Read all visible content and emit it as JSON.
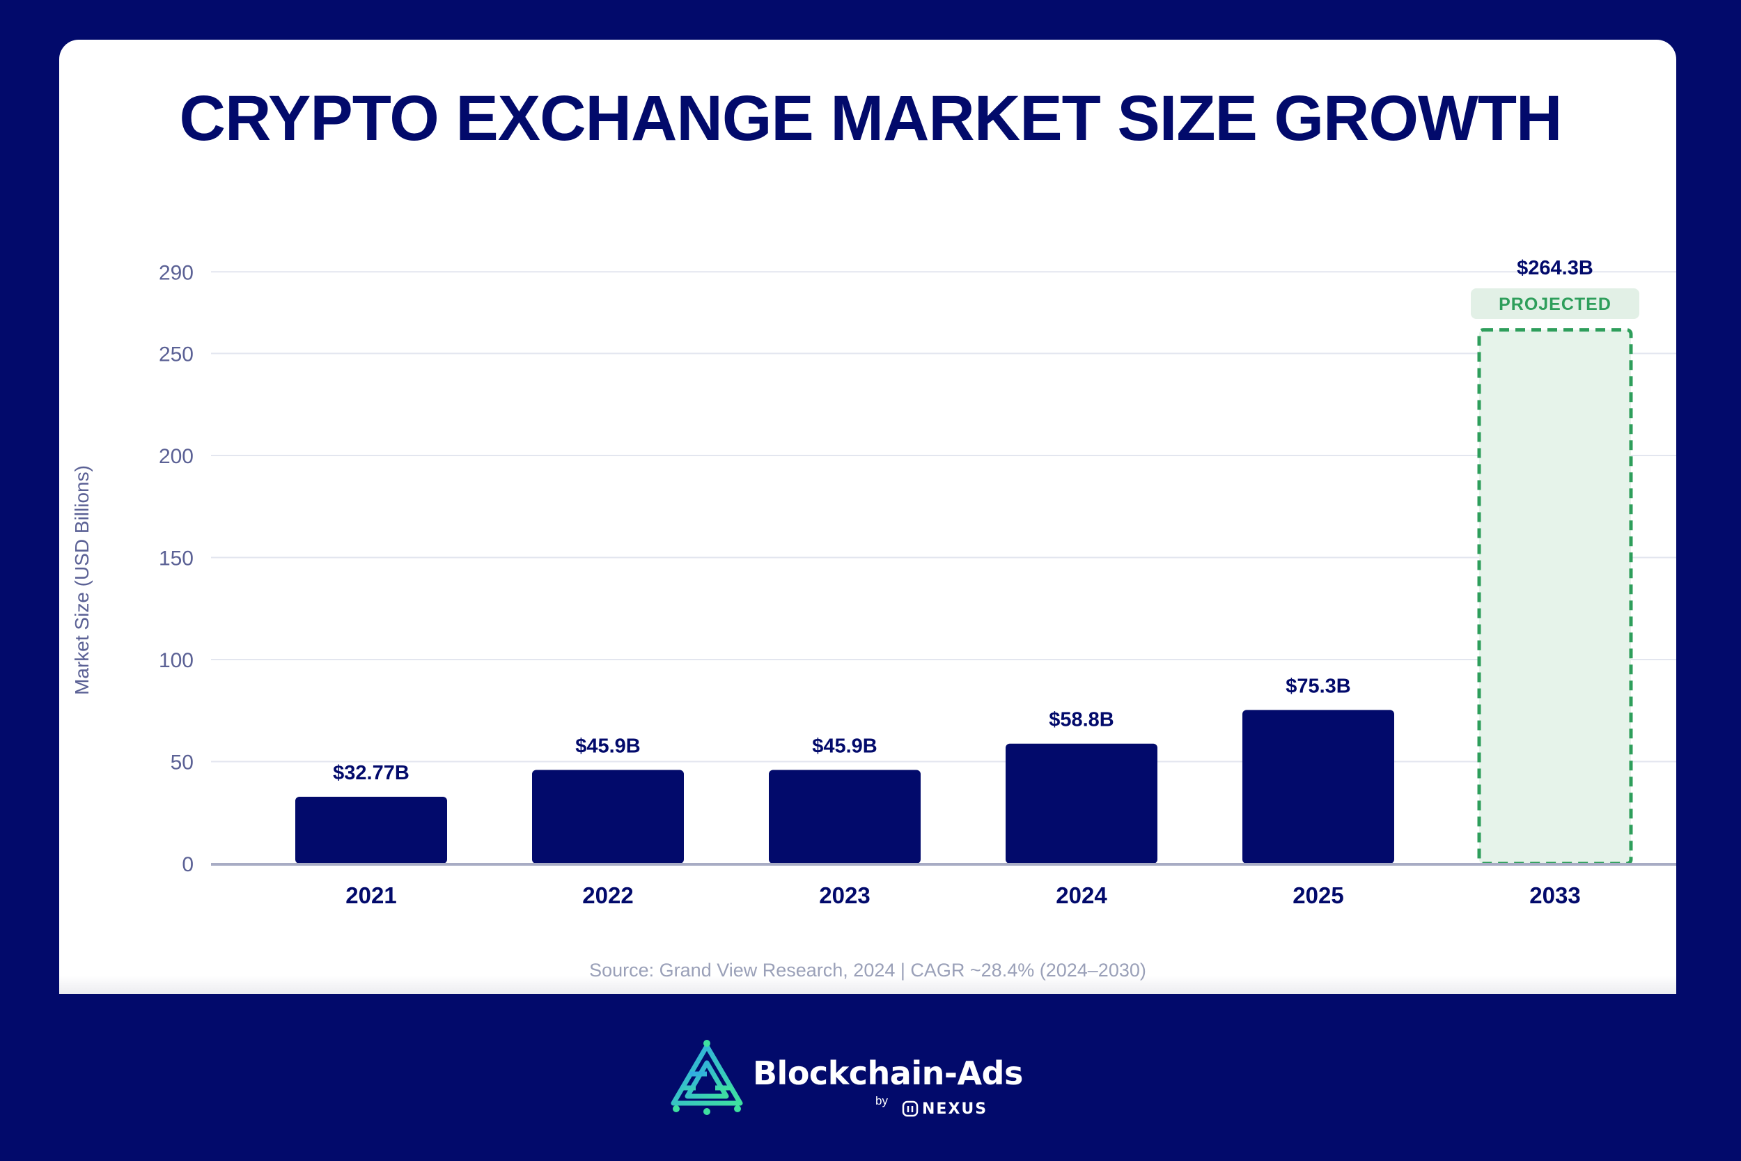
{
  "chart_data": {
    "type": "bar",
    "title": "CRYPTO EXCHANGE MARKET SIZE GROWTH",
    "ylabel": "Market Size (USD Billions)",
    "xlabel": "",
    "categories": [
      "2021",
      "2022",
      "2023",
      "2024",
      "2025",
      "2033"
    ],
    "values": [
      32.77,
      45.9,
      45.9,
      58.8,
      75.3,
      264.3
    ],
    "data_labels": [
      "$32.77B",
      "$45.9B",
      "$45.9B",
      "$58.8B",
      "$75.3B",
      "$264.3B"
    ],
    "projected": [
      false,
      false,
      false,
      false,
      false,
      true
    ],
    "projected_label": "PROJECTED",
    "yticks": [
      0,
      50,
      100,
      150,
      200,
      250,
      290
    ],
    "ylim": [
      0,
      290
    ],
    "grid": true,
    "source": "Source: Grand View Research, 2024 | CAGR ~28.4% (2024–2030)",
    "colors": {
      "bar": "#020a6b",
      "projected_stroke": "#2e9e5b",
      "projected_fill": "#e6f3ea",
      "projected_badge_bg": "#e2f0e6",
      "grid": "#e3e6ef",
      "axis": "#a8acc4",
      "tick": "#5b6195",
      "label": "#020a6b"
    }
  },
  "brand": {
    "name": "Blockchain-Ads",
    "by": "by",
    "partner": "NEXUS",
    "logo_icon": "blockchain-ads-logo-icon",
    "partner_icon": "nexus-logo-icon"
  }
}
